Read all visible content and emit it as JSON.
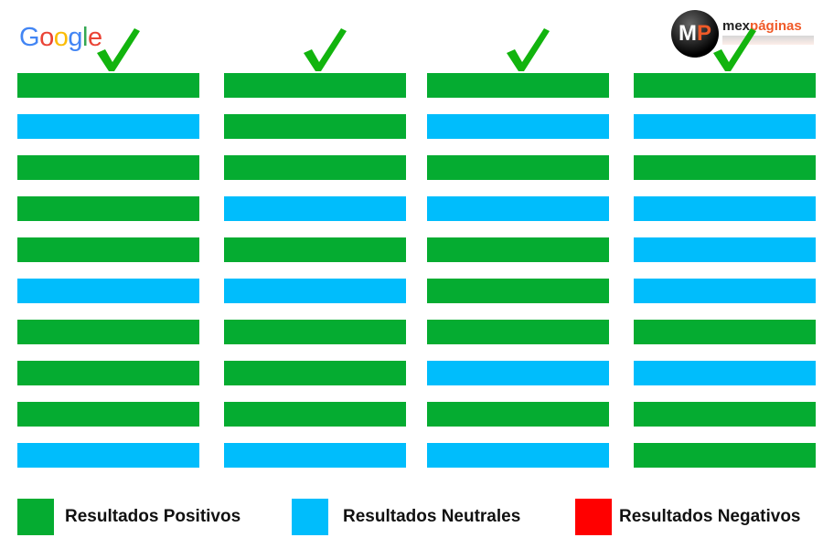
{
  "logos": {
    "left": "Google",
    "right_prefix": "mex",
    "right_suffix": "páginas",
    "right_badge": "MP"
  },
  "colors": {
    "positive": "#05ac31",
    "neutral": "#00bdfc",
    "negative": "#ff0000",
    "check": "#12b40e"
  },
  "columns": [
    [
      "positive",
      "neutral",
      "positive",
      "positive",
      "positive",
      "neutral",
      "positive",
      "positive",
      "positive",
      "neutral"
    ],
    [
      "positive",
      "positive",
      "positive",
      "neutral",
      "positive",
      "neutral",
      "positive",
      "positive",
      "positive",
      "neutral"
    ],
    [
      "positive",
      "neutral",
      "positive",
      "neutral",
      "positive",
      "positive",
      "positive",
      "neutral",
      "positive",
      "neutral"
    ],
    [
      "positive",
      "neutral",
      "positive",
      "neutral",
      "neutral",
      "neutral",
      "positive",
      "neutral",
      "positive",
      "positive"
    ]
  ],
  "legend": [
    {
      "key": "positive",
      "label": "Resultados Positivos"
    },
    {
      "key": "neutral",
      "label": "Resultados Neutrales"
    },
    {
      "key": "negative",
      "label": "Resultados Negativos"
    }
  ]
}
